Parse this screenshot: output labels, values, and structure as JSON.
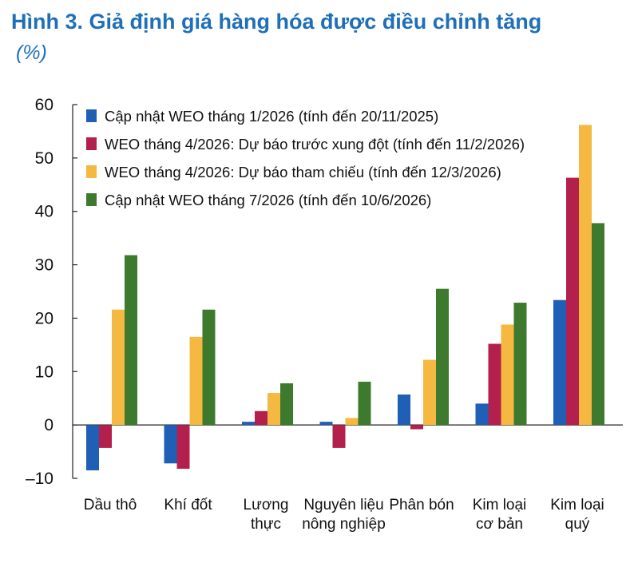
{
  "title": "Hình 3. Giả định giá hàng hóa được điều chỉnh tăng",
  "subtitle": "(%)",
  "chart_data": {
    "type": "bar",
    "categories": [
      [
        "Dầu thô"
      ],
      [
        "Khí đốt"
      ],
      [
        "Lương",
        "thực"
      ],
      [
        "Nguyên liệu",
        "nông nghiệp"
      ],
      [
        "Phân bón"
      ],
      [
        "Kim loại",
        "cơ bản"
      ],
      [
        "Kim loại",
        "quý"
      ]
    ],
    "series": [
      {
        "name": "Cập nhật WEO tháng 1/2026 (tính đến 20/11/2025)",
        "color": "#1f5fb5",
        "values": [
          -8.5,
          -7.2,
          0.6,
          0.6,
          5.7,
          4.0,
          23.4
        ]
      },
      {
        "name": "WEO tháng 4/2026: Dự báo trước xung đột (tính đến 11/2/2026)",
        "color": "#b3204d",
        "values": [
          -4.3,
          -8.2,
          2.6,
          -4.3,
          -0.8,
          15.2,
          46.3
        ]
      },
      {
        "name": "WEO tháng 4/2026: Dự báo tham chiếu (tính đến 12/3/2026)",
        "color": "#f5b841",
        "values": [
          21.6,
          16.5,
          6.0,
          1.3,
          12.2,
          18.8,
          56.2
        ]
      },
      {
        "name": "Cập nhật WEO tháng 7/2026 (tính đến 10/6/2026)",
        "color": "#3d7a2e",
        "values": [
          31.8,
          21.6,
          7.8,
          8.1,
          25.5,
          22.9,
          37.8
        ]
      }
    ],
    "ylim": [
      -10,
      60
    ],
    "yticks": [
      "60",
      "50",
      "40",
      "30",
      "20",
      "10",
      "0",
      "–10"
    ],
    "legend_position": "top-left"
  }
}
